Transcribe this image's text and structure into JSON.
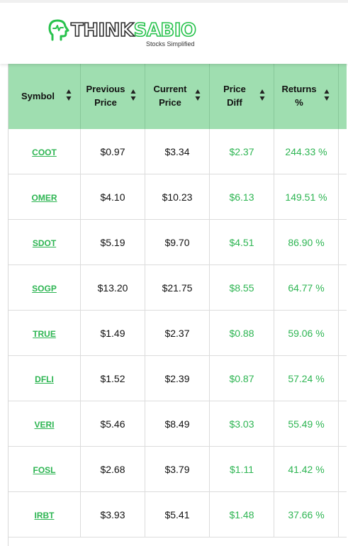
{
  "brand": {
    "name_part1": "THINK",
    "name_part2": "SABIO",
    "tagline": "Stocks Simplified",
    "colors": {
      "green": "#27c24c",
      "dark": "#2d2d2d"
    }
  },
  "table": {
    "headers": [
      {
        "label": "Symbol",
        "key": "symbol"
      },
      {
        "label": "Previous\nPrice",
        "key": "previous_price"
      },
      {
        "label": "Current\nPrice",
        "key": "current_price"
      },
      {
        "label": "Price\nDiff",
        "key": "price_diff"
      },
      {
        "label": "Returns\n%",
        "key": "returns"
      }
    ],
    "header_bg": "#9fdeb0",
    "accent": "#2db552",
    "rows": [
      {
        "symbol": "COOT",
        "previous_price": "$0.97",
        "current_price": "$3.34",
        "price_diff": "$2.37",
        "returns": "244.33 %"
      },
      {
        "symbol": "OMER",
        "previous_price": "$4.10",
        "current_price": "$10.23",
        "price_diff": "$6.13",
        "returns": "149.51 %"
      },
      {
        "symbol": "SDOT",
        "previous_price": "$5.19",
        "current_price": "$9.70",
        "price_diff": "$4.51",
        "returns": "86.90 %"
      },
      {
        "symbol": "SOGP",
        "previous_price": "$13.20",
        "current_price": "$21.75",
        "price_diff": "$8.55",
        "returns": "64.77 %"
      },
      {
        "symbol": "TRUE",
        "previous_price": "$1.49",
        "current_price": "$2.37",
        "price_diff": "$0.88",
        "returns": "59.06 %"
      },
      {
        "symbol": "DFLI",
        "previous_price": "$1.52",
        "current_price": "$2.39",
        "price_diff": "$0.87",
        "returns": "57.24 %"
      },
      {
        "symbol": "VERI",
        "previous_price": "$5.46",
        "current_price": "$8.49",
        "price_diff": "$3.03",
        "returns": "55.49 %"
      },
      {
        "symbol": "FOSL",
        "previous_price": "$2.68",
        "current_price": "$3.79",
        "price_diff": "$1.11",
        "returns": "41.42 %"
      },
      {
        "symbol": "IRBT",
        "previous_price": "$3.93",
        "current_price": "$5.41",
        "price_diff": "$1.48",
        "returns": "37.66 %"
      }
    ]
  }
}
